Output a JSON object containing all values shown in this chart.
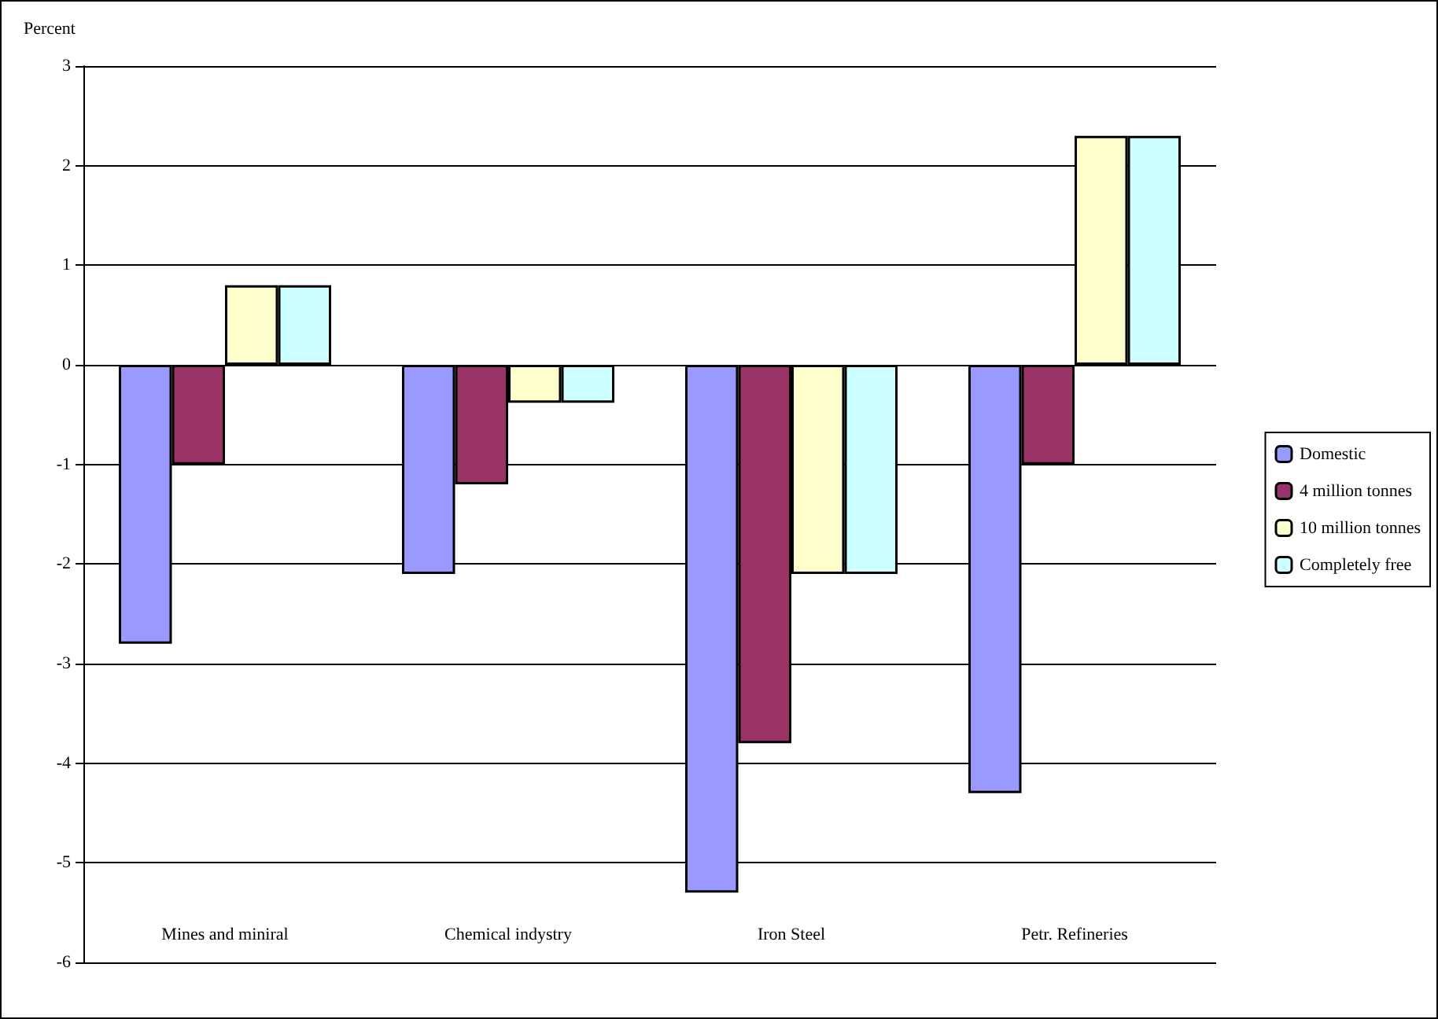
{
  "chart_data": {
    "type": "bar",
    "ylabel": "Percent",
    "categories": [
      "Mines and miniral",
      "Chemical indystry",
      "Iron Steel",
      "Petr. Refineries"
    ],
    "series": [
      {
        "name": "Domestic",
        "color": "#9999ff",
        "values": [
          -2.8,
          -2.1,
          -5.3,
          -4.3
        ]
      },
      {
        "name": "4 million tonnes",
        "color": "#993366",
        "values": [
          -1.0,
          -1.2,
          -3.8,
          -1.0
        ]
      },
      {
        "name": "10 million tonnes",
        "color": "#ffffcc",
        "values": [
          0.8,
          -0.38,
          -2.1,
          2.3
        ]
      },
      {
        "name": "Completely free",
        "color": "#ccffff",
        "values": [
          0.8,
          -0.38,
          -2.1,
          2.3
        ]
      }
    ],
    "ylim": [
      -6,
      3
    ],
    "yticks": [
      -6,
      -5,
      -4,
      -3,
      -2,
      -1,
      0,
      1,
      2,
      3
    ],
    "grid": "y",
    "legend": "right"
  }
}
